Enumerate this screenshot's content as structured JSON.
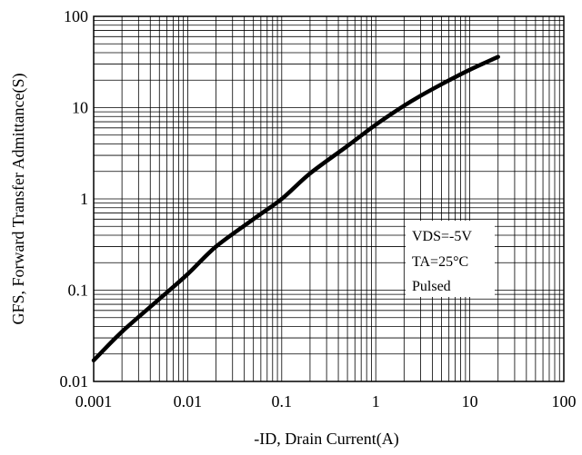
{
  "chart_data": {
    "type": "line",
    "xscale": "log",
    "yscale": "log",
    "xlim": [
      0.001,
      100
    ],
    "ylim": [
      0.01,
      100
    ],
    "grid": true,
    "xlabel": "-ID, Drain Current(A)",
    "ylabel": "GFS, Forward Transfer Admittance(S)",
    "x_tick_labels": [
      "0.001",
      "0.01",
      "0.1",
      "1",
      "10",
      "100"
    ],
    "y_tick_labels": [
      "0.01",
      "0.1",
      "1",
      "10",
      "100"
    ],
    "annotations": [
      "VDS=-5V",
      "TA=25°C",
      "Pulsed"
    ],
    "series": [
      {
        "x": [
          0.001,
          0.002,
          0.005,
          0.01,
          0.02,
          0.05,
          0.1,
          0.2,
          0.5,
          1,
          2,
          3,
          5,
          10,
          20
        ],
        "y": [
          0.017,
          0.035,
          0.08,
          0.15,
          0.3,
          0.6,
          1.0,
          1.9,
          3.8,
          6.5,
          10.5,
          13.5,
          18,
          26,
          36
        ]
      }
    ]
  }
}
